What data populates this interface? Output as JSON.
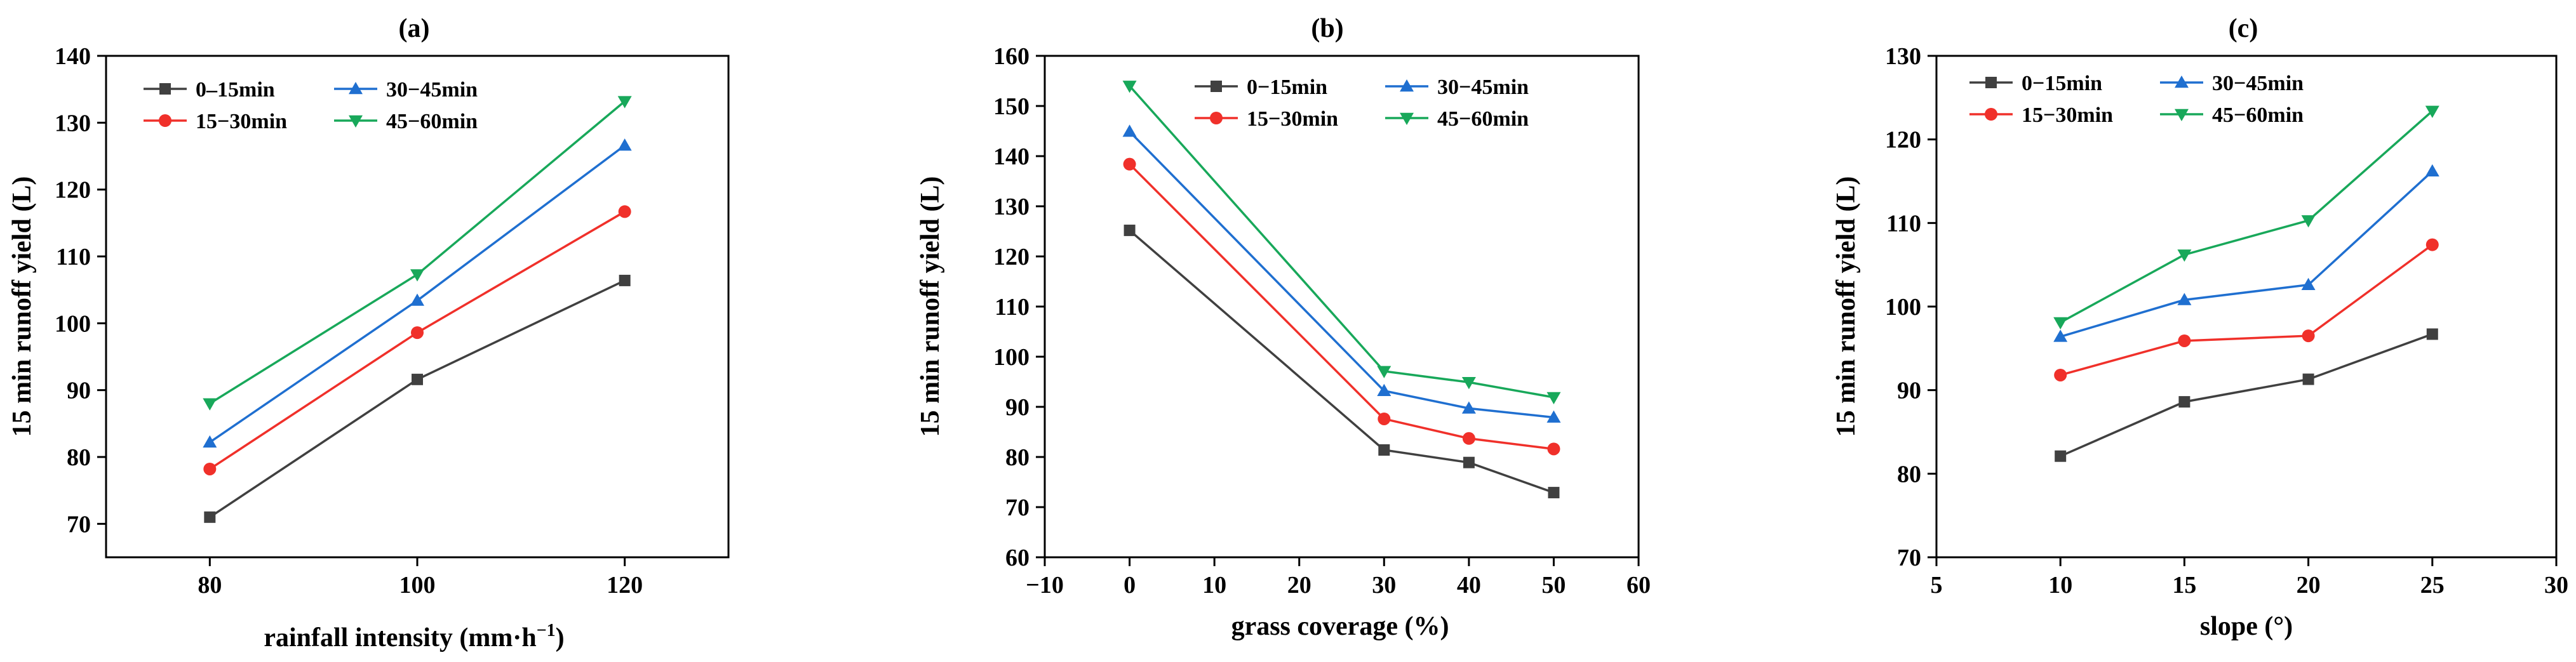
{
  "chart_data": [
    {
      "type": "line",
      "title": "(a)",
      "xlabel": "rainfall intensity (mm·h",
      "xlabel_sup": "−1",
      "xlabel_end": ")",
      "ylabel": "15 min runoff yield (L)",
      "xlim": [
        70,
        130
      ],
      "ylim": [
        65,
        140
      ],
      "xticks": [
        80,
        100,
        120
      ],
      "yticks": [
        70,
        80,
        90,
        100,
        110,
        120,
        130,
        140
      ],
      "x": [
        80,
        100,
        120
      ],
      "series": [
        {
          "name": "0–15min",
          "color": "#404040",
          "marker": "square",
          "values": [
            71.0,
            91.6,
            106.4
          ]
        },
        {
          "name": "15−30min",
          "color": "#f0302a",
          "marker": "circle",
          "values": [
            78.2,
            98.6,
            116.7
          ]
        },
        {
          "name": "30−45min",
          "color": "#1f6fd0",
          "marker": "triangle-up",
          "values": [
            82.2,
            103.4,
            126.6
          ]
        },
        {
          "name": "45−60min",
          "color": "#18a85a",
          "marker": "triangle-down",
          "values": [
            88.0,
            107.3,
            133.2
          ]
        }
      ]
    },
    {
      "type": "line",
      "title": "(b)",
      "xlabel": "grass coverage (%)",
      "ylabel": "15 min runoff yield (L)",
      "xlim": [
        -10,
        60
      ],
      "ylim": [
        60,
        160
      ],
      "xticks": [
        -10,
        0,
        10,
        20,
        30,
        40,
        50,
        60
      ],
      "yticks": [
        60,
        70,
        80,
        90,
        100,
        110,
        120,
        130,
        140,
        150,
        160
      ],
      "x": [
        0,
        30,
        40,
        50
      ],
      "series": [
        {
          "name": "0−15min",
          "color": "#404040",
          "marker": "square",
          "values": [
            125.2,
            81.4,
            78.9,
            72.9
          ]
        },
        {
          "name": "15−30min",
          "color": "#f0302a",
          "marker": "circle",
          "values": [
            138.4,
            87.6,
            83.7,
            81.6
          ]
        },
        {
          "name": "30−45min",
          "color": "#1f6fd0",
          "marker": "triangle-up",
          "values": [
            144.9,
            93.2,
            89.7,
            87.9
          ]
        },
        {
          "name": "45−60min",
          "color": "#18a85a",
          "marker": "triangle-down",
          "values": [
            154.0,
            97.1,
            94.9,
            91.9
          ]
        }
      ]
    },
    {
      "type": "line",
      "title": "(c)",
      "xlabel": "slope (°)",
      "ylabel": "15 min runoff yield (L)",
      "xlim": [
        5,
        30
      ],
      "ylim": [
        70,
        130
      ],
      "xticks": [
        5,
        10,
        15,
        20,
        25,
        30
      ],
      "yticks": [
        70,
        80,
        90,
        100,
        110,
        120,
        130
      ],
      "x": [
        10,
        15,
        20,
        25
      ],
      "series": [
        {
          "name": "0−15min",
          "color": "#404040",
          "marker": "square",
          "values": [
            82.1,
            88.6,
            91.3,
            96.7
          ]
        },
        {
          "name": "15−30min",
          "color": "#f0302a",
          "marker": "circle",
          "values": [
            91.8,
            95.9,
            96.5,
            107.4
          ]
        },
        {
          "name": "30−45min",
          "color": "#1f6fd0",
          "marker": "triangle-up",
          "values": [
            96.4,
            100.8,
            102.6,
            116.2
          ]
        },
        {
          "name": "45−60min",
          "color": "#18a85a",
          "marker": "triangle-down",
          "values": [
            98.1,
            106.2,
            110.3,
            123.4
          ]
        }
      ]
    }
  ]
}
